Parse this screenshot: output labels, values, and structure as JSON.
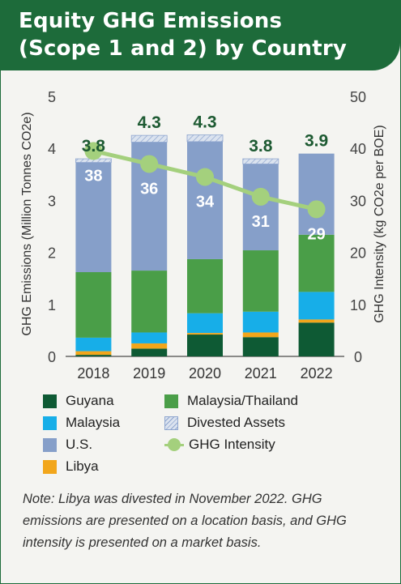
{
  "header": {
    "title_line1": "Equity GHG Emissions",
    "title_line2": "(Scope 1 and 2) by Country"
  },
  "colors": {
    "header_bg": "#1d6b3a",
    "guyana": "#0e5a34",
    "libya": "#f2a61b",
    "malaysia": "#17aee8",
    "malaysia_thailand": "#4a9e48",
    "us": "#869fc9",
    "divested": "#dbe3ef",
    "intensity": "#a4d07d"
  },
  "chart_data": {
    "type": "bar",
    "stacked": true,
    "categories": [
      "2018",
      "2019",
      "2020",
      "2021",
      "2022"
    ],
    "ylabel": "GHG Emissions (Million Tonnes CO2e)",
    "y2label": "GHG Intensity (kg CO2e per BOE)",
    "ylim": [
      0,
      5
    ],
    "y2lim": [
      0,
      50
    ],
    "yticks": [
      "0",
      "1",
      "2",
      "3",
      "4",
      "5"
    ],
    "y2ticks": [
      "0",
      "10",
      "20",
      "30",
      "40",
      "50"
    ],
    "series": [
      {
        "name": "Guyana",
        "values": [
          0.03,
          0.15,
          0.42,
          0.37,
          0.65
        ]
      },
      {
        "name": "Libya",
        "values": [
          0.07,
          0.1,
          0.03,
          0.09,
          0.06
        ]
      },
      {
        "name": "Malaysia",
        "values": [
          0.26,
          0.21,
          0.38,
          0.4,
          0.53
        ]
      },
      {
        "name": "Malaysia/Thailand",
        "values": [
          1.26,
          1.19,
          1.04,
          1.18,
          1.1
        ]
      },
      {
        "name": "U.S.",
        "values": [
          2.11,
          2.47,
          2.26,
          1.66,
          1.56
        ]
      },
      {
        "name": "Divested Assets",
        "values": [
          0.07,
          0.13,
          0.13,
          0.1,
          0
        ]
      }
    ],
    "totals": [
      "3.8",
      "4.3",
      "4.3",
      "3.8",
      "3.9"
    ],
    "intensity": {
      "name": "GHG Intensity",
      "values": [
        38,
        36,
        34,
        31,
        29
      ]
    },
    "intensity_line_points": [
      39.5,
      37,
      34.5,
      30.7,
      28.3
    ],
    "legend_position": "bottom"
  },
  "legend": [
    {
      "label": "Guyana",
      "key": "guyana"
    },
    {
      "label": "Malaysia/Thailand",
      "key": "malaysia_thailand"
    },
    {
      "label": "Malaysia",
      "key": "malaysia"
    },
    {
      "label": "Divested Assets",
      "key": "divested"
    },
    {
      "label": "U.S.",
      "key": "us"
    },
    {
      "label": "GHG Intensity",
      "key": "intensity"
    },
    {
      "label": "Libya",
      "key": "libya"
    }
  ],
  "note": "Note: Libya was divested in November 2022. GHG emissions are presented on a location basis, and GHG intensity is presented on a market basis."
}
